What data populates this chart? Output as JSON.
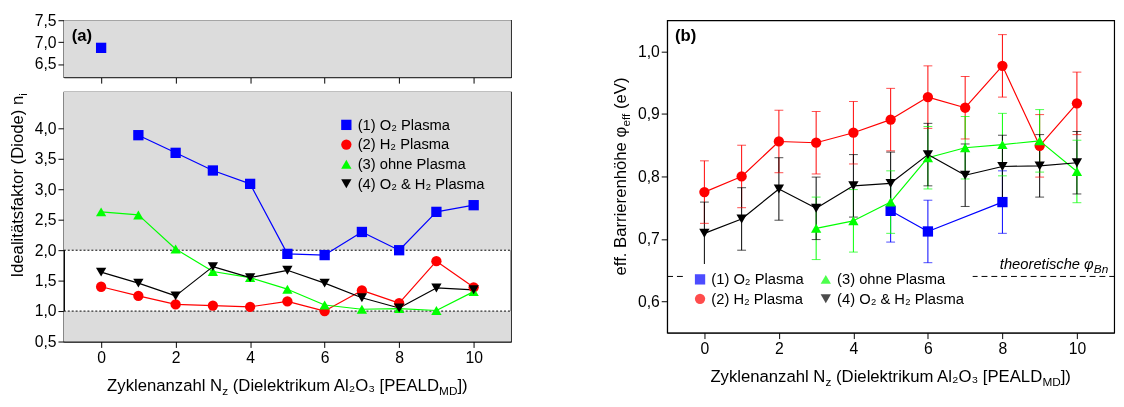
{
  "chart_data": [
    {
      "type": "line",
      "annotations": [
        "(a)"
      ],
      "tick_labels": "y",
      "xlim": [
        -1,
        11
      ],
      "xticks": [
        {
          "value": 0,
          "label": null
        },
        {
          "value": 2,
          "label": null
        },
        {
          "value": 4,
          "label": null
        },
        {
          "value": 6,
          "label": null
        },
        {
          "value": 8,
          "label": null
        },
        {
          "value": 10,
          "label": null
        }
      ],
      "ylim": [
        6.2,
        7.5
      ],
      "yticks": [
        {
          "value": 6.5,
          "label": "6,5"
        },
        {
          "value": 7.0,
          "label": "7,0"
        },
        {
          "value": 7.5,
          "label": "7,5"
        }
      ],
      "bands": [
        {
          "axis": "y",
          "from": 6.2,
          "to": 7.5,
          "color": "#dcdcdc"
        }
      ],
      "grid": false,
      "series": [
        {
          "color": "#0000ff",
          "marker": "square",
          "x": [
            0
          ],
          "values": [
            6.87
          ]
        }
      ]
    },
    {
      "type": "line",
      "ylabel": "Idealitätsfaktor (Diode) n$_{i}$",
      "xlabel": "Zyklenanzahl N$_{z}$ (Dielektrikum Al₂O₃ [PEALD$_{MD}$])",
      "x": [
        0,
        1,
        2,
        3,
        4,
        5,
        6,
        7,
        8,
        9,
        10
      ],
      "xlim": [
        -1,
        11
      ],
      "xticks": [
        0,
        2,
        4,
        6,
        8,
        10
      ],
      "ylim": [
        0.5,
        4.6
      ],
      "yticks": [
        {
          "value": 0.5,
          "label": "0,5"
        },
        {
          "value": 1.0,
          "label": "1,0"
        },
        {
          "value": 1.5,
          "label": "1,5"
        },
        {
          "value": 2.0,
          "label": "2,0"
        },
        {
          "value": 2.5,
          "label": "2,5"
        },
        {
          "value": 3.0,
          "label": "3,0"
        },
        {
          "value": 3.5,
          "label": "3,5"
        },
        {
          "value": 4.0,
          "label": "4,0"
        }
      ],
      "bands": [
        {
          "axis": "y",
          "from": 0.5,
          "to": 1.0,
          "color": "#dcdcdc"
        },
        {
          "axis": "y",
          "from": 2.0,
          "to": 4.6,
          "color": "#dcdcdc"
        }
      ],
      "ref_lines": [
        {
          "axis": "y",
          "value": 1.0,
          "line_style": "dotted",
          "color": "#000000"
        },
        {
          "axis": "y",
          "value": 2.0,
          "line_style": "dotted",
          "color": "#000000"
        }
      ],
      "legend": "top right",
      "grid": false,
      "series": [
        {
          "name": "(1) O₂ Plasma",
          "color": "#0000ff",
          "marker": "square",
          "values": [
            null,
            3.89,
            3.6,
            3.31,
            3.09,
            1.94,
            1.92,
            2.3,
            2.0,
            2.63,
            2.74
          ]
        },
        {
          "name": "(2) H₂ Plasma",
          "color": "#ff0000",
          "marker": "circle",
          "values": [
            1.4,
            1.25,
            1.11,
            1.09,
            1.07,
            1.16,
            1.0,
            1.34,
            1.13,
            1.82,
            1.39
          ]
        },
        {
          "name": "(3) ohne Plasma",
          "color": "#00ff00",
          "marker": "triangle",
          "values": [
            2.63,
            2.58,
            2.02,
            1.65,
            1.55,
            1.36,
            1.1,
            1.03,
            1.04,
            1.01,
            1.32
          ]
        },
        {
          "name": "(4) O₂ & H₂ Plasma",
          "color": "#000000",
          "marker": "triangle-down",
          "values": [
            1.64,
            1.46,
            1.25,
            1.73,
            1.55,
            1.67,
            1.46,
            1.22,
            1.05,
            1.38,
            1.35
          ]
        }
      ]
    },
    {
      "type": "line",
      "ylabel": "eff. Barrierenhöhe φ$_{eff}$ (eV)",
      "xlabel": "Zyklenanzahl N$_{z}$ (Dielektrikum Al₂O₃ [PEALD$_{MD}$])",
      "annotations": [
        "(b)"
      ],
      "x": [
        0,
        1,
        2,
        3,
        4,
        5,
        6,
        7,
        8,
        9,
        10
      ],
      "xlim": [
        -1,
        11
      ],
      "xticks": [
        0,
        2,
        4,
        6,
        8,
        10
      ],
      "ylim": [
        0.55,
        1.05
      ],
      "yticks": [
        {
          "value": 0.6,
          "label": "0,6"
        },
        {
          "value": 0.7,
          "label": "0,7"
        },
        {
          "value": 0.8,
          "label": "0,8"
        },
        {
          "value": 0.9,
          "label": "0,9"
        },
        {
          "value": 1.0,
          "label": "1,0"
        }
      ],
      "ref_lines": [
        {
          "axis": "y",
          "value": 0.64,
          "label": "theoretische φ$_{Bn}$",
          "line_style": "dashed",
          "color": "#000000"
        }
      ],
      "legend": "bottom left",
      "grid": false,
      "series": [
        {
          "name": "(1) O₂ Plasma",
          "color": "#0000ff",
          "marker": "square",
          "values": [
            null,
            null,
            null,
            null,
            null,
            0.745,
            0.712,
            null,
            0.759,
            null,
            null
          ],
          "errors": [
            null,
            null,
            null,
            null,
            null,
            0.05,
            0.05,
            null,
            0.05,
            null,
            null
          ]
        },
        {
          "name": "(2) H₂ Plasma",
          "color": "#ff0000",
          "marker": "circle",
          "values": [
            0.775,
            0.8,
            0.856,
            0.854,
            0.87,
            0.891,
            0.927,
            0.91,
            0.977,
            0.849,
            0.917
          ],
          "errors": [
            0.05,
            0.05,
            0.05,
            0.05,
            0.05,
            0.05,
            0.05,
            0.05,
            0.05,
            0.05,
            0.05
          ]
        },
        {
          "name": "(3) ohne Plasma",
          "color": "#00ff00",
          "marker": "triangle",
          "values": [
            null,
            null,
            null,
            0.717,
            0.729,
            0.759,
            0.83,
            0.846,
            0.851,
            0.857,
            0.808
          ],
          "errors": [
            null,
            null,
            null,
            0.05,
            0.05,
            0.05,
            0.05,
            0.05,
            0.05,
            0.05,
            0.05
          ]
        },
        {
          "name": "(4) O₂ & H₂ Plasma",
          "color": "#000000",
          "marker": "triangle-down",
          "values": [
            0.709,
            0.732,
            0.78,
            0.749,
            0.785,
            0.789,
            0.835,
            0.802,
            0.816,
            0.817,
            0.822
          ],
          "errors": [
            0.05,
            0.05,
            0.05,
            0.05,
            0.05,
            0.05,
            0.05,
            0.05,
            0.05,
            0.05,
            0.05
          ]
        }
      ]
    }
  ]
}
